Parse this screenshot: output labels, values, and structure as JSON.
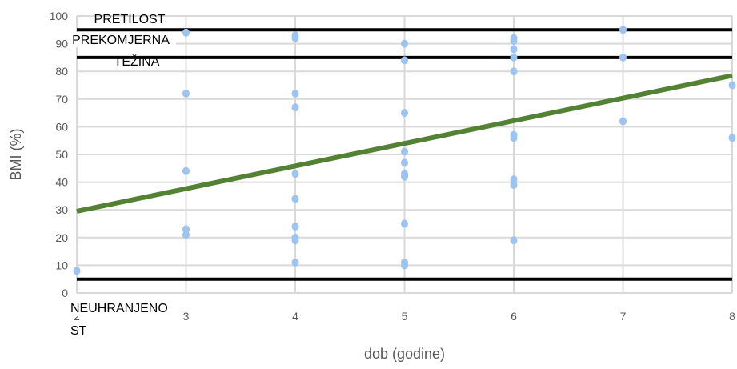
{
  "chart_data": {
    "type": "scatter",
    "xlabel": "dob (godine)",
    "ylabel": "BMI (%)",
    "xlim": [
      2,
      8
    ],
    "ylim": [
      0,
      100
    ],
    "x_ticks": [
      "2",
      "3",
      "4",
      "5",
      "6",
      "7",
      "8"
    ],
    "y_ticks": [
      "0",
      "10",
      "20",
      "30",
      "40",
      "50",
      "60",
      "70",
      "80",
      "90",
      "100"
    ],
    "grid": true,
    "points": [
      {
        "x": 2,
        "y": 8
      },
      {
        "x": 3,
        "y": 94
      },
      {
        "x": 3,
        "y": 72
      },
      {
        "x": 3,
        "y": 44
      },
      {
        "x": 3,
        "y": 23
      },
      {
        "x": 3,
        "y": 21
      },
      {
        "x": 4,
        "y": 93
      },
      {
        "x": 4,
        "y": 92
      },
      {
        "x": 4,
        "y": 72
      },
      {
        "x": 4,
        "y": 67
      },
      {
        "x": 4,
        "y": 43
      },
      {
        "x": 4,
        "y": 34
      },
      {
        "x": 4,
        "y": 24
      },
      {
        "x": 4,
        "y": 20
      },
      {
        "x": 4,
        "y": 19
      },
      {
        "x": 4,
        "y": 11
      },
      {
        "x": 5,
        "y": 90
      },
      {
        "x": 5,
        "y": 84
      },
      {
        "x": 5,
        "y": 65
      },
      {
        "x": 5,
        "y": 51
      },
      {
        "x": 5,
        "y": 47
      },
      {
        "x": 5,
        "y": 43
      },
      {
        "x": 5,
        "y": 42
      },
      {
        "x": 5,
        "y": 25
      },
      {
        "x": 5,
        "y": 11
      },
      {
        "x": 5,
        "y": 10
      },
      {
        "x": 6,
        "y": 92
      },
      {
        "x": 6,
        "y": 91
      },
      {
        "x": 6,
        "y": 88
      },
      {
        "x": 6,
        "y": 85
      },
      {
        "x": 6,
        "y": 80
      },
      {
        "x": 6,
        "y": 57
      },
      {
        "x": 6,
        "y": 56
      },
      {
        "x": 6,
        "y": 41
      },
      {
        "x": 6,
        "y": 39
      },
      {
        "x": 6,
        "y": 19
      },
      {
        "x": 7,
        "y": 95
      },
      {
        "x": 7,
        "y": 85
      },
      {
        "x": 7,
        "y": 62
      },
      {
        "x": 8,
        "y": 75
      },
      {
        "x": 8,
        "y": 56
      }
    ],
    "trendline": {
      "x": [
        2,
        8
      ],
      "y": [
        29.5,
        78.5
      ]
    },
    "reference_lines": [
      {
        "y": 95,
        "label": "PRETILOST"
      },
      {
        "y": 85,
        "label": "PREKOMJERNA TEŽINA"
      },
      {
        "y": 5,
        "label": "NEUHRANJENOST"
      }
    ],
    "colors": {
      "points": "#9dc3f0",
      "trendline": "#548235",
      "reference_lines": "#000000",
      "grid": "#d9d9d9"
    }
  }
}
